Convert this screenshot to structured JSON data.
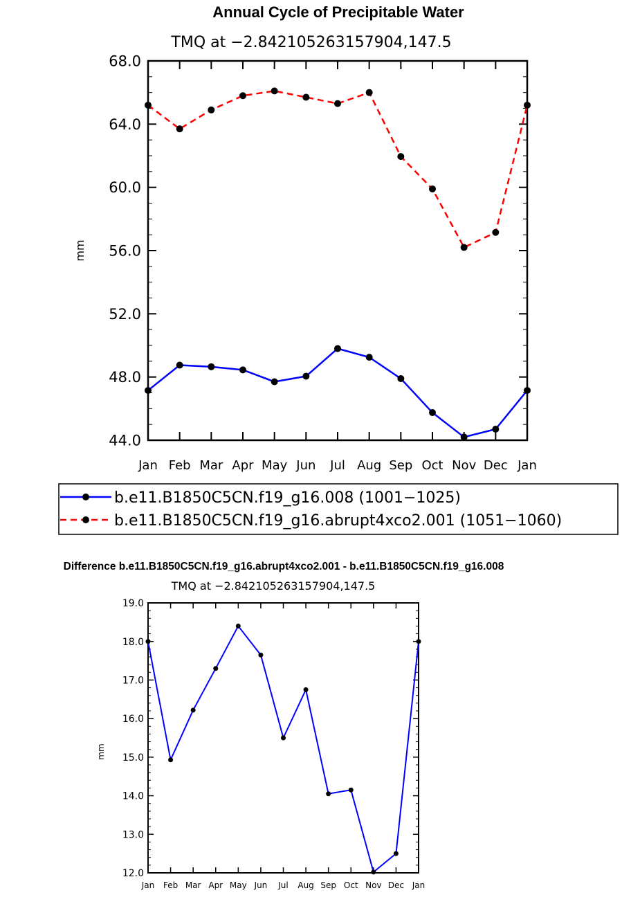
{
  "chart_data": [
    {
      "type": "line",
      "title": "Annual Cycle of Precipitable Water",
      "subtitle": "TMQ at −2.842105263157904,147.5",
      "ylabel": "mm",
      "xlabel": "",
      "ylim": [
        44.0,
        68.0
      ],
      "yticks": [
        "44.0",
        "48.0",
        "52.0",
        "56.0",
        "60.0",
        "64.0",
        "68.0"
      ],
      "categories": [
        "Jan",
        "Feb",
        "Mar",
        "Apr",
        "May",
        "Jun",
        "Jul",
        "Aug",
        "Sep",
        "Oct",
        "Nov",
        "Dec",
        "Jan"
      ],
      "series": [
        {
          "name": "b.e11.B1850C5CN.f19_g16.008 (1001−1025)",
          "color": "#0000ff",
          "dash": "solid",
          "values": [
            47.15,
            48.75,
            48.65,
            48.45,
            47.7,
            48.05,
            49.8,
            49.25,
            47.9,
            45.75,
            44.2,
            44.7,
            47.15
          ]
        },
        {
          "name": "b.e11.B1850C5CN.f19_g16.abrupt4xco2.001 (1051−1060)",
          "color": "#ff0000",
          "dash": "dashed",
          "values": [
            65.2,
            63.7,
            64.9,
            65.8,
            66.1,
            65.7,
            65.3,
            66.0,
            61.95,
            59.9,
            56.2,
            57.15,
            65.2
          ]
        }
      ],
      "legend": "below"
    },
    {
      "type": "line",
      "title": "Difference b.e11.B1850C5CN.f19_g16.abrupt4xco2.001 - b.e11.B1850C5CN.f19_g16.008",
      "subtitle": "TMQ at −2.842105263157904,147.5",
      "ylabel": "mm",
      "xlabel": "",
      "ylim": [
        12.0,
        19.0
      ],
      "yticks": [
        "12.0",
        "13.0",
        "14.0",
        "15.0",
        "16.0",
        "17.0",
        "18.0",
        "19.0"
      ],
      "categories": [
        "Jan",
        "Feb",
        "Mar",
        "Apr",
        "May",
        "Jun",
        "Jul",
        "Aug",
        "Sep",
        "Oct",
        "Nov",
        "Dec",
        "Jan"
      ],
      "series": [
        {
          "name": "difference",
          "color": "#0000ff",
          "dash": "solid",
          "values": [
            18.0,
            14.93,
            16.22,
            17.3,
            18.4,
            17.65,
            15.5,
            16.75,
            14.05,
            14.15,
            12.02,
            12.5,
            18.0
          ]
        }
      ]
    }
  ]
}
